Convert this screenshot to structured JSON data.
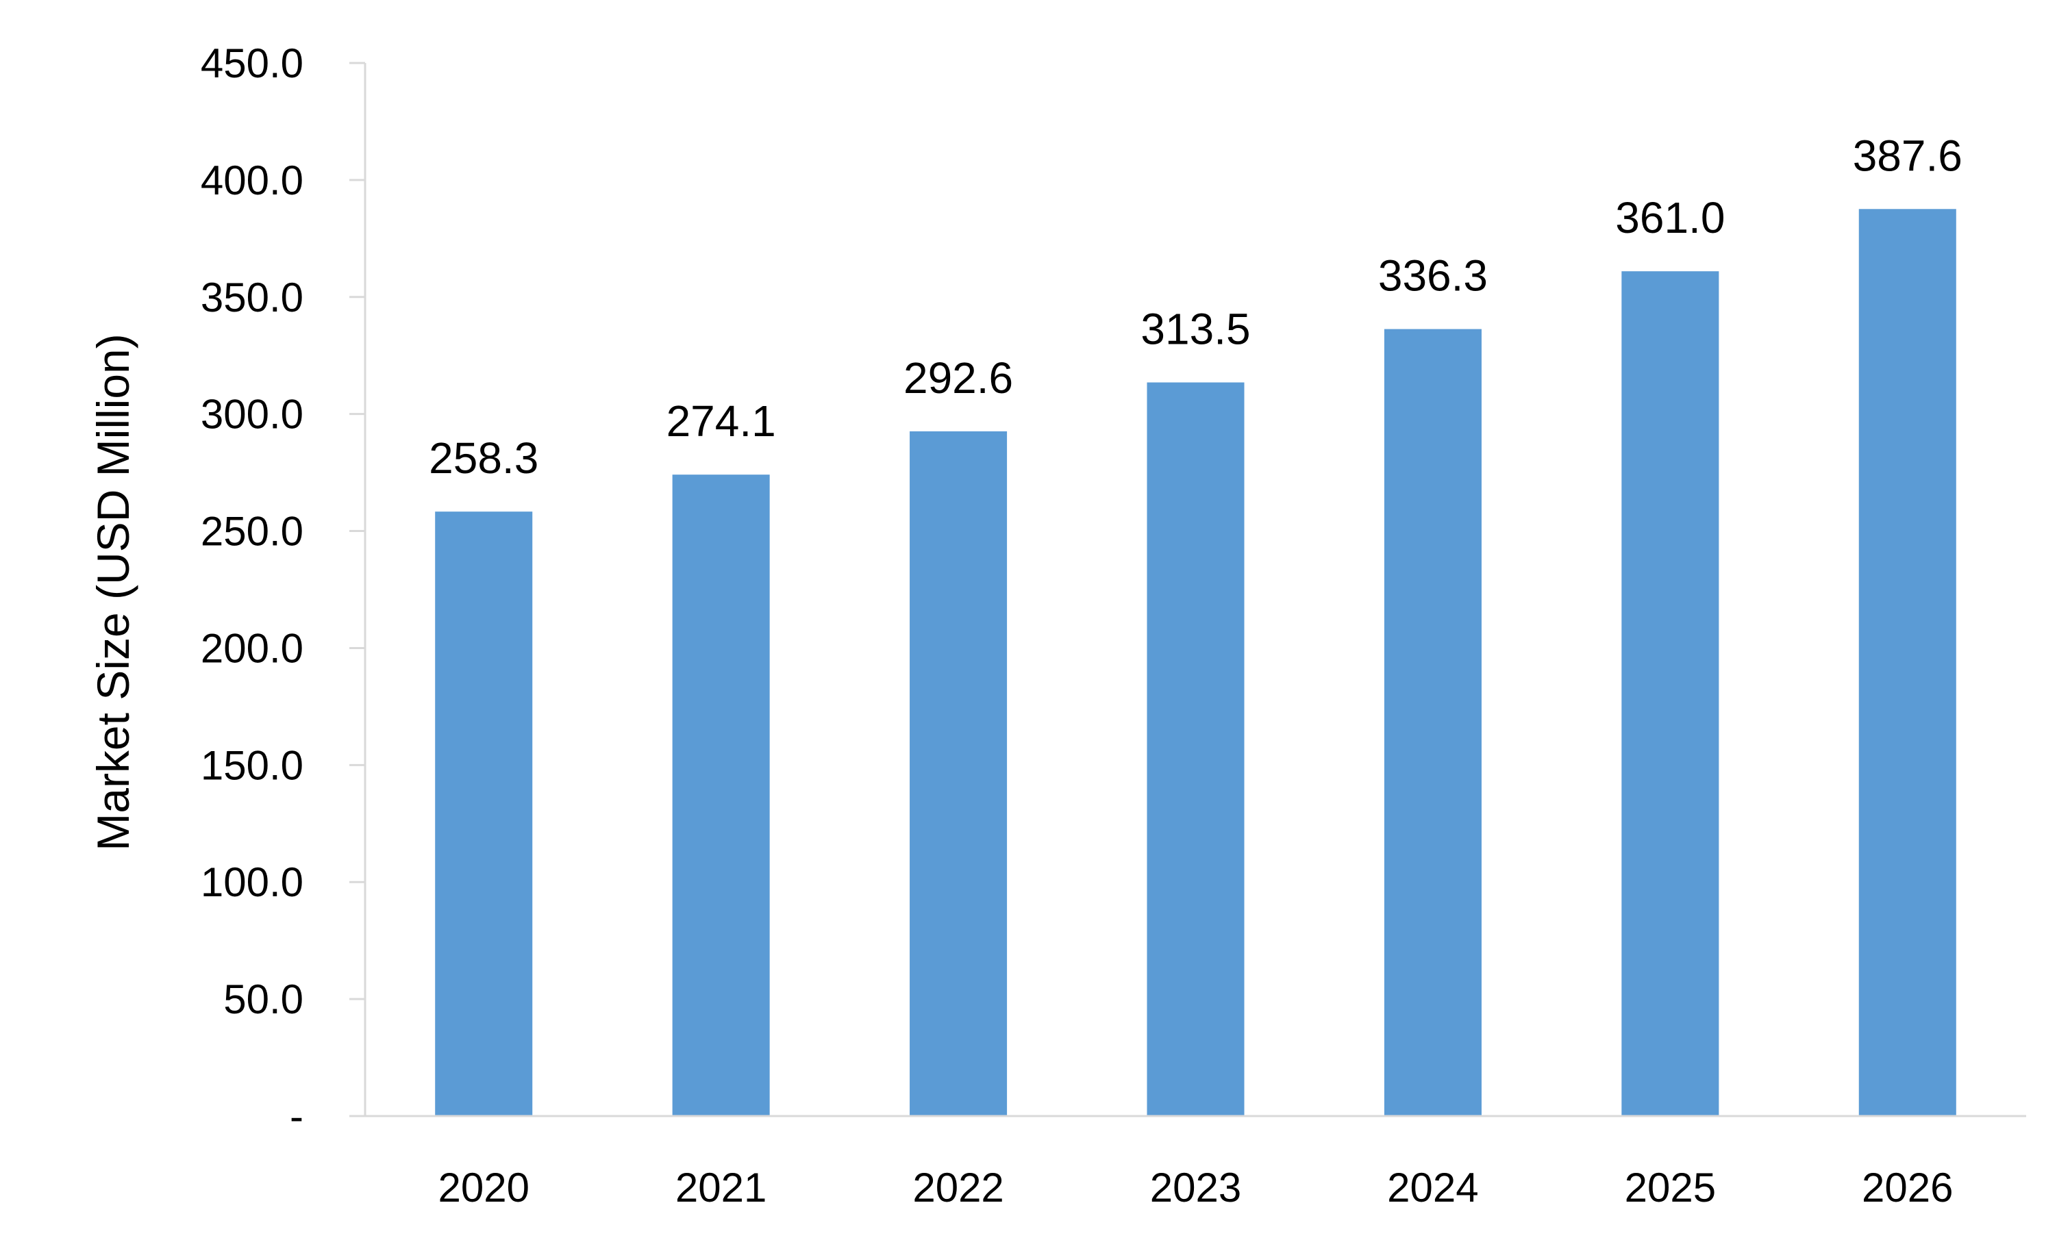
{
  "chart_data": {
    "type": "bar",
    "title": "",
    "xlabel": "",
    "ylabel": "Market Size (USD Million)",
    "categories": [
      "2020",
      "2021",
      "2022",
      "2023",
      "2024",
      "2025",
      "2026"
    ],
    "values": [
      258.3,
      274.1,
      292.6,
      313.5,
      336.3,
      361.0,
      387.6
    ],
    "value_labels": [
      "258.3",
      "274.1",
      "292.6",
      "313.5",
      "336.3",
      "361.0",
      "387.6"
    ],
    "ylim": [
      0,
      450
    ],
    "y_ticks": [
      0,
      50,
      100,
      150,
      200,
      250,
      300,
      350,
      400,
      450
    ],
    "y_tick_labels": [
      "-",
      "50.0",
      "100.0",
      "150.0",
      "200.0",
      "250.0",
      "300.0",
      "350.0",
      "400.0",
      "450.0"
    ],
    "grid": false,
    "legend": "none",
    "colors": {
      "bar": "#5B9BD5",
      "axis": "#D9D9D9",
      "text": "#000000"
    }
  }
}
